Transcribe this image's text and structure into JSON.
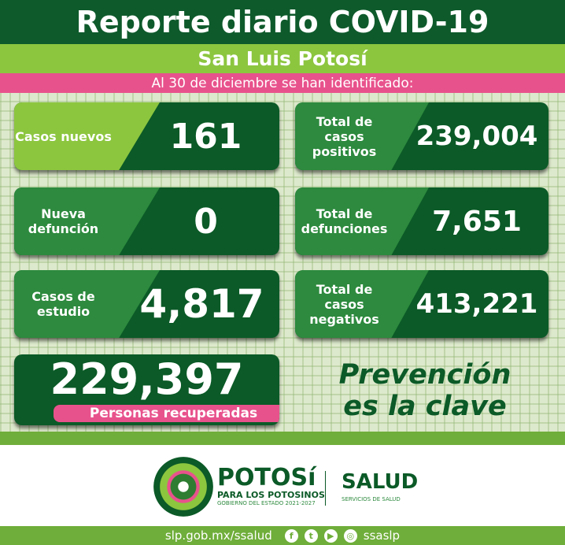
{
  "header": {
    "title": "Reporte diario COVID-19",
    "state": "San Luis Potosí",
    "date_line": "Al 30 de diciembre se han identificado:"
  },
  "cards": {
    "casos_nuevos": {
      "label": "Casos nuevos",
      "value": "161"
    },
    "total_positivos": {
      "label": "Total de casos positivos",
      "value": "239,004"
    },
    "nueva_defuncion": {
      "label": "Nueva defunción",
      "value": "0"
    },
    "total_defunciones": {
      "label": "Total de defunciones",
      "value": "7,651"
    },
    "casos_estudio": {
      "label": "Casos de estudio",
      "value": "4,817"
    },
    "total_negativos": {
      "label": "Total de casos negativos",
      "value": "413,221"
    },
    "recuperados": {
      "label": "Personas recuperadas",
      "value": "229,397"
    }
  },
  "slogan": {
    "line1": "Prevención",
    "line2": "es la clave"
  },
  "logos": {
    "potosi": "POTOSí",
    "potosi_tag": "PARA LOS POTOSINOS",
    "gobierno": "GOBIERNO DEL ESTADO 2021-2027",
    "salud": "SALUD",
    "salud_sub": "SERVICIOS DE SALUD"
  },
  "footer": {
    "url": "slp.gob.mx/ssalud",
    "handle": "ssaslp",
    "icons": [
      "facebook-icon",
      "twitter-icon",
      "youtube-icon",
      "instagram-icon"
    ]
  },
  "colors": {
    "dark_green": "#0b5a27",
    "light_green": "#8cc63f",
    "pink": "#e8528c"
  }
}
